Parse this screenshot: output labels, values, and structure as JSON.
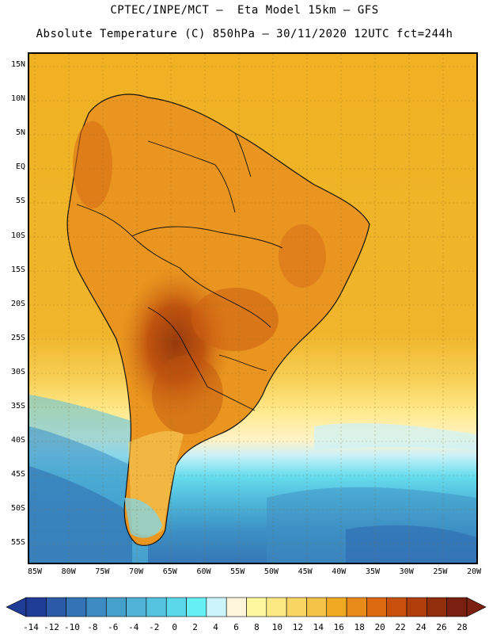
{
  "title": {
    "line1": "CPTEC/INPE/MCT –  Eta Model 15km – GFS",
    "line2": "Absolute Temperature (C) 850hPa – 30/11/2020 12UTC fct=244h"
  },
  "map": {
    "lat_labels": [
      "15N",
      "10N",
      "5N",
      "EQ",
      "5S",
      "10S",
      "15S",
      "20S",
      "25S",
      "30S",
      "35S",
      "40S",
      "45S",
      "50S",
      "55S"
    ],
    "lon_labels": [
      "85W",
      "80W",
      "75W",
      "70W",
      "65W",
      "60W",
      "55W",
      "50W",
      "45W",
      "40W",
      "35W",
      "30W",
      "25W",
      "20W"
    ]
  },
  "colorbar": {
    "labels": [
      "-14",
      "-12",
      "-10",
      "-8",
      "-6",
      "-4",
      "-2",
      "0",
      "2",
      "4",
      "6",
      "8",
      "10",
      "12",
      "14",
      "16",
      "18",
      "20",
      "22",
      "24",
      "26",
      "28"
    ],
    "colors": [
      "#1f3c96",
      "#2a5aa8",
      "#3274b5",
      "#3c8cc2",
      "#46a0cc",
      "#4fb2d6",
      "#55c4e0",
      "#5ad8ea",
      "#66f0f6",
      "#ccf5fb",
      "#fff6dc",
      "#fdf7a0",
      "#fde983",
      "#f9d664",
      "#f3c247",
      "#efaa22",
      "#e88a1a",
      "#dd6a10",
      "#c9500c",
      "#b03e0a",
      "#932e0a",
      "#7a2010"
    ]
  }
}
